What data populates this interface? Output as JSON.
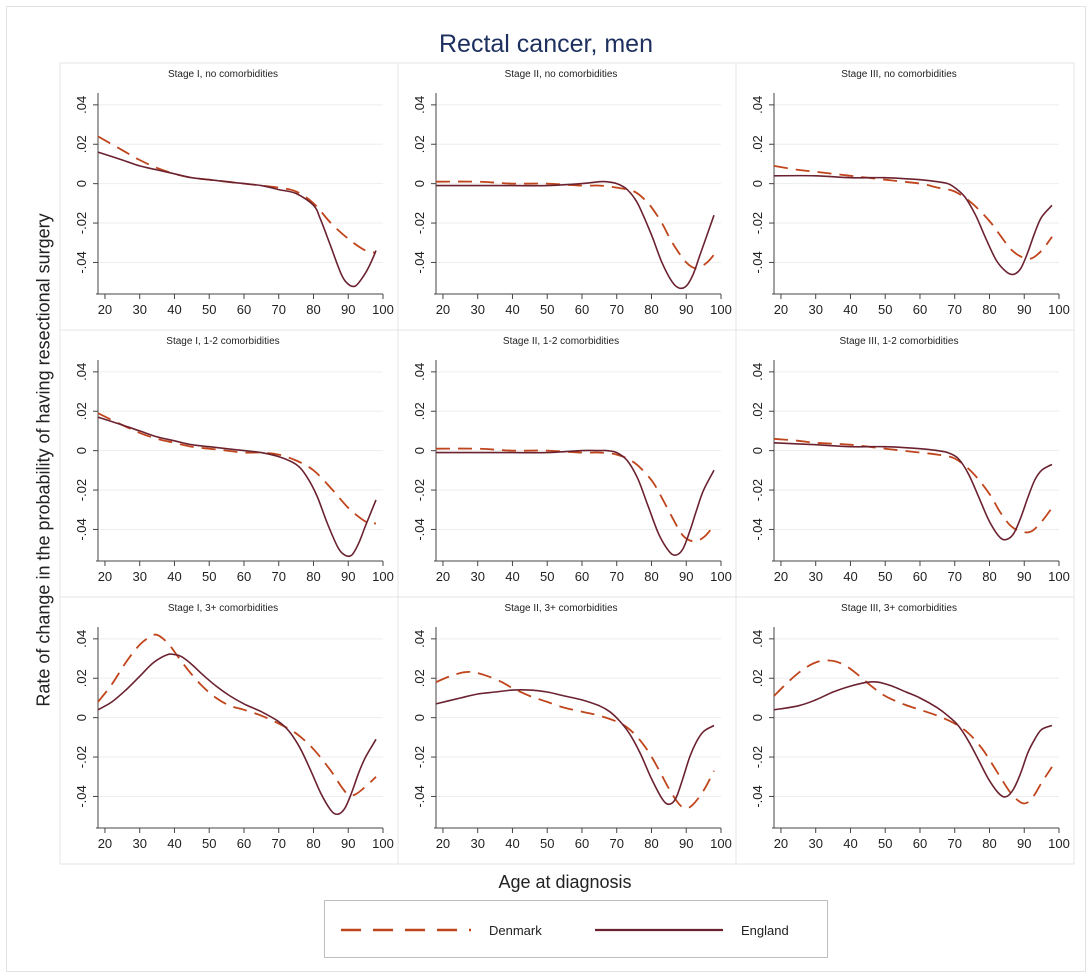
{
  "title": "Rectal cancer, men",
  "ylabel": "Rate of change in the probability of having resectional surgery",
  "xlabel": "Age at diagnosis",
  "legend": [
    {
      "name": "Denmark",
      "style": "dashed",
      "color": "#c0451c"
    },
    {
      "name": "England",
      "style": "solid",
      "color": "#6b2230"
    }
  ],
  "chart_data": {
    "type": "line",
    "x_ticks": [
      20,
      30,
      40,
      50,
      60,
      70,
      80,
      90,
      100
    ],
    "y_ticks": [
      -0.04,
      -0.02,
      0,
      0.02,
      0.04
    ],
    "y_tick_labels": [
      "-.04",
      "-.02",
      "0",
      ".02",
      ".04"
    ],
    "xlim": [
      18,
      100
    ],
    "ylim": [
      -0.055,
      0.045
    ],
    "grid": "horizontal",
    "panels": [
      {
        "title": "Stage I, no comorbidities",
        "series": [
          {
            "name": "Denmark",
            "x": [
              18,
              25,
              30,
              35,
              40,
              45,
              50,
              55,
              60,
              65,
              70,
              75,
              80,
              85,
              90,
              95,
              98
            ],
            "y": [
              0.024,
              0.017,
              0.012,
              0.008,
              0.005,
              0.003,
              0.002,
              0.001,
              0.0,
              -0.001,
              -0.002,
              -0.004,
              -0.01,
              -0.02,
              -0.028,
              -0.034,
              -0.035
            ]
          },
          {
            "name": "England",
            "x": [
              18,
              25,
              30,
              35,
              40,
              45,
              50,
              55,
              60,
              65,
              70,
              75,
              80,
              82,
              85,
              88,
              90,
              92,
              94,
              96,
              98
            ],
            "y": [
              0.016,
              0.012,
              0.009,
              0.007,
              0.005,
              0.003,
              0.002,
              0.001,
              0.0,
              -0.001,
              -0.003,
              -0.005,
              -0.011,
              -0.018,
              -0.032,
              -0.046,
              -0.051,
              -0.052,
              -0.048,
              -0.042,
              -0.034
            ]
          }
        ]
      },
      {
        "title": "Stage II, no comorbidities",
        "series": [
          {
            "name": "Denmark",
            "x": [
              18,
              30,
              40,
              50,
              60,
              65,
              70,
              75,
              78,
              80,
              83,
              86,
              90,
              93,
              96,
              98
            ],
            "y": [
              0.001,
              0.001,
              0.0,
              0.0,
              -0.001,
              -0.001,
              -0.002,
              -0.004,
              -0.008,
              -0.012,
              -0.02,
              -0.03,
              -0.04,
              -0.043,
              -0.04,
              -0.036
            ]
          },
          {
            "name": "England",
            "x": [
              18,
              30,
              40,
              50,
              60,
              65,
              67,
              70,
              73,
              76,
              80,
              83,
              86,
              88,
              90,
              92,
              94,
              96,
              98
            ],
            "y": [
              -0.001,
              -0.001,
              -0.001,
              -0.001,
              0.0,
              0.001,
              0.001,
              0.0,
              -0.003,
              -0.01,
              -0.026,
              -0.04,
              -0.05,
              -0.053,
              -0.052,
              -0.046,
              -0.036,
              -0.026,
              -0.016
            ]
          }
        ]
      },
      {
        "title": "Stage III, no comorbidities",
        "series": [
          {
            "name": "Denmark",
            "x": [
              18,
              25,
              30,
              40,
              50,
              60,
              65,
              70,
              75,
              80,
              83,
              86,
              89,
              92,
              95,
              98
            ],
            "y": [
              0.009,
              0.007,
              0.006,
              0.004,
              0.002,
              0.0,
              -0.002,
              -0.004,
              -0.01,
              -0.019,
              -0.026,
              -0.033,
              -0.037,
              -0.038,
              -0.034,
              -0.027
            ]
          },
          {
            "name": "England",
            "x": [
              18,
              30,
              40,
              50,
              60,
              65,
              68,
              70,
              73,
              76,
              79,
              82,
              85,
              87,
              89,
              91,
              93,
              95,
              98
            ],
            "y": [
              0.004,
              0.004,
              0.003,
              0.003,
              0.002,
              0.001,
              0.0,
              -0.002,
              -0.007,
              -0.016,
              -0.028,
              -0.039,
              -0.045,
              -0.046,
              -0.043,
              -0.035,
              -0.025,
              -0.017,
              -0.011
            ]
          }
        ]
      },
      {
        "title": "Stage I, 1-2 comorbidities",
        "series": [
          {
            "name": "Denmark",
            "x": [
              18,
              25,
              30,
              35,
              40,
              45,
              50,
              55,
              60,
              65,
              70,
              75,
              80,
              85,
              90,
              95,
              98
            ],
            "y": [
              0.019,
              0.013,
              0.009,
              0.006,
              0.004,
              0.002,
              0.001,
              0.0,
              -0.001,
              -0.001,
              -0.002,
              -0.005,
              -0.01,
              -0.019,
              -0.029,
              -0.036,
              -0.037
            ]
          },
          {
            "name": "England",
            "x": [
              18,
              25,
              30,
              35,
              40,
              45,
              50,
              55,
              60,
              65,
              70,
              75,
              78,
              81,
              84,
              87,
              89,
              91,
              93,
              95,
              98
            ],
            "y": [
              0.017,
              0.013,
              0.01,
              0.007,
              0.005,
              0.003,
              0.002,
              0.001,
              0.0,
              -0.001,
              -0.003,
              -0.007,
              -0.013,
              -0.023,
              -0.037,
              -0.049,
              -0.053,
              -0.053,
              -0.047,
              -0.038,
              -0.025
            ]
          }
        ]
      },
      {
        "title": "Stage II, 1-2 comorbidities",
        "series": [
          {
            "name": "Denmark",
            "x": [
              18,
              30,
              40,
              50,
              60,
              65,
              70,
              75,
              80,
              83,
              86,
              89,
              92,
              95,
              98
            ],
            "y": [
              0.001,
              0.001,
              0.0,
              0.0,
              -0.001,
              -0.001,
              -0.002,
              -0.006,
              -0.015,
              -0.024,
              -0.034,
              -0.043,
              -0.046,
              -0.044,
              -0.038
            ]
          },
          {
            "name": "England",
            "x": [
              18,
              30,
              40,
              50,
              60,
              65,
              67,
              70,
              73,
              76,
              79,
              82,
              85,
              87,
              89,
              91,
              93,
              95,
              98
            ],
            "y": [
              -0.001,
              -0.001,
              -0.001,
              -0.001,
              0.0,
              0.0,
              0.0,
              -0.001,
              -0.005,
              -0.014,
              -0.028,
              -0.042,
              -0.051,
              -0.053,
              -0.05,
              -0.041,
              -0.03,
              -0.02,
              -0.01
            ]
          }
        ]
      },
      {
        "title": "Stage III, 1-2 comorbidities",
        "series": [
          {
            "name": "Denmark",
            "x": [
              18,
              25,
              30,
              40,
              50,
              60,
              65,
              70,
              75,
              80,
              83,
              86,
              89,
              92,
              95,
              98
            ],
            "y": [
              0.006,
              0.005,
              0.004,
              0.003,
              0.001,
              -0.001,
              -0.002,
              -0.004,
              -0.011,
              -0.022,
              -0.031,
              -0.038,
              -0.041,
              -0.041,
              -0.036,
              -0.029
            ]
          },
          {
            "name": "England",
            "x": [
              18,
              30,
              40,
              50,
              60,
              65,
              68,
              71,
              74,
              77,
              80,
              83,
              85,
              87,
              89,
              91,
              93,
              95,
              98
            ],
            "y": [
              0.004,
              0.003,
              0.002,
              0.002,
              0.001,
              0.0,
              -0.001,
              -0.004,
              -0.012,
              -0.024,
              -0.036,
              -0.044,
              -0.045,
              -0.042,
              -0.034,
              -0.024,
              -0.015,
              -0.01,
              -0.007
            ]
          }
        ]
      },
      {
        "title": "Stage I, 3+ comorbidities",
        "series": [
          {
            "name": "Denmark",
            "x": [
              18,
              22,
              26,
              30,
              33,
              35,
              38,
              41,
              44,
              48,
              52,
              56,
              60,
              65,
              70,
              75,
              80,
              85,
              88,
              90,
              92,
              95,
              98
            ],
            "y": [
              0.008,
              0.017,
              0.028,
              0.037,
              0.041,
              0.042,
              0.038,
              0.031,
              0.024,
              0.016,
              0.01,
              0.006,
              0.004,
              0.001,
              -0.003,
              -0.008,
              -0.016,
              -0.027,
              -0.035,
              -0.039,
              -0.039,
              -0.035,
              -0.03
            ]
          },
          {
            "name": "England",
            "x": [
              18,
              22,
              26,
              30,
              34,
              38,
              40,
              42,
              45,
              48,
              52,
              56,
              60,
              65,
              70,
              73,
              76,
              79,
              82,
              85,
              87,
              89,
              91,
              93,
              95,
              98
            ],
            "y": [
              0.004,
              0.008,
              0.014,
              0.021,
              0.028,
              0.032,
              0.032,
              0.031,
              0.027,
              0.022,
              0.016,
              0.011,
              0.007,
              0.003,
              -0.002,
              -0.007,
              -0.015,
              -0.026,
              -0.038,
              -0.047,
              -0.049,
              -0.046,
              -0.038,
              -0.028,
              -0.02,
              -0.011
            ]
          }
        ]
      },
      {
        "title": "Stage II, 3+ comorbidities",
        "series": [
          {
            "name": "Denmark",
            "x": [
              18,
              22,
              26,
              29,
              33,
              37,
              40,
              45,
              50,
              55,
              60,
              65,
              70,
              73,
              76,
              79,
              82,
              85,
              88,
              90,
              92,
              95,
              98
            ],
            "y": [
              0.018,
              0.021,
              0.023,
              0.023,
              0.021,
              0.018,
              0.015,
              0.011,
              0.008,
              0.005,
              0.003,
              0.001,
              -0.002,
              -0.005,
              -0.01,
              -0.017,
              -0.026,
              -0.036,
              -0.044,
              -0.046,
              -0.044,
              -0.037,
              -0.027
            ]
          },
          {
            "name": "England",
            "x": [
              18,
              25,
              30,
              35,
              40,
              45,
              50,
              55,
              60,
              65,
              68,
              71,
              74,
              77,
              80,
              83,
              85,
              87,
              89,
              91,
              93,
              95,
              98
            ],
            "y": [
              0.007,
              0.01,
              0.012,
              0.013,
              0.014,
              0.014,
              0.013,
              0.011,
              0.009,
              0.006,
              0.003,
              -0.002,
              -0.009,
              -0.019,
              -0.031,
              -0.041,
              -0.044,
              -0.041,
              -0.031,
              -0.02,
              -0.012,
              -0.007,
              -0.004
            ]
          }
        ]
      },
      {
        "title": "Stage III, 3+ comorbidities",
        "series": [
          {
            "name": "Denmark",
            "x": [
              18,
              22,
              26,
              30,
              34,
              38,
              42,
              46,
              50,
              55,
              60,
              65,
              70,
              74,
              78,
              82,
              86,
              89,
              91,
              93,
              95,
              98
            ],
            "y": [
              0.011,
              0.018,
              0.024,
              0.028,
              0.029,
              0.027,
              0.022,
              0.016,
              0.011,
              0.007,
              0.004,
              0.001,
              -0.003,
              -0.008,
              -0.016,
              -0.027,
              -0.038,
              -0.043,
              -0.043,
              -0.039,
              -0.033,
              -0.025
            ]
          },
          {
            "name": "England",
            "x": [
              18,
              25,
              30,
              35,
              40,
              45,
              48,
              52,
              56,
              60,
              65,
              68,
              71,
              74,
              77,
              80,
              83,
              85,
              87,
              89,
              91,
              93,
              95,
              98
            ],
            "y": [
              0.004,
              0.006,
              0.009,
              0.013,
              0.016,
              0.018,
              0.018,
              0.016,
              0.013,
              0.01,
              0.005,
              0.001,
              -0.004,
              -0.012,
              -0.022,
              -0.032,
              -0.039,
              -0.04,
              -0.036,
              -0.028,
              -0.018,
              -0.011,
              -0.006,
              -0.004
            ]
          }
        ]
      }
    ]
  }
}
